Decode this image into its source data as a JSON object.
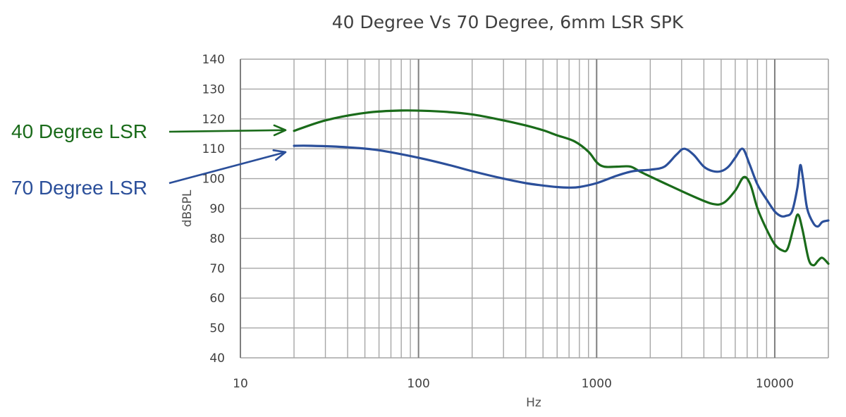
{
  "chart_data": {
    "type": "line",
    "title": "40 Degree Vs 70 Degree, 6mm LSR SPK",
    "xlabel": "Hz",
    "ylabel": "dBSPL",
    "x_scale": "log",
    "xlim": [
      10,
      20000
    ],
    "ylim": [
      40,
      140
    ],
    "x_ticks": [
      "10",
      "100",
      "1000",
      "10000"
    ],
    "y_ticks": [
      "40",
      "50",
      "60",
      "70",
      "80",
      "90",
      "100",
      "110",
      "120",
      "130",
      "140"
    ],
    "grid": true,
    "series": [
      {
        "name": "40 Degree LSR",
        "color": "#1a6b1a",
        "points": [
          [
            20,
            116
          ],
          [
            30,
            119.5
          ],
          [
            50,
            122
          ],
          [
            80,
            122.8
          ],
          [
            130,
            122.5
          ],
          [
            200,
            121.5
          ],
          [
            300,
            119.5
          ],
          [
            400,
            117.8
          ],
          [
            500,
            116.2
          ],
          [
            600,
            114.5
          ],
          [
            750,
            112.5
          ],
          [
            900,
            109
          ],
          [
            1000,
            105.5
          ],
          [
            1100,
            104
          ],
          [
            1300,
            104
          ],
          [
            1550,
            104
          ],
          [
            1800,
            102
          ],
          [
            2500,
            98
          ],
          [
            3500,
            94
          ],
          [
            4500,
            91.5
          ],
          [
            5200,
            92
          ],
          [
            6000,
            96
          ],
          [
            6700,
            100.5
          ],
          [
            7300,
            98
          ],
          [
            8000,
            90
          ],
          [
            9000,
            83
          ],
          [
            10000,
            78
          ],
          [
            11000,
            76
          ],
          [
            11800,
            76.5
          ],
          [
            12800,
            84
          ],
          [
            13500,
            88
          ],
          [
            14300,
            83
          ],
          [
            15500,
            73
          ],
          [
            16500,
            71
          ],
          [
            17500,
            72.5
          ],
          [
            18500,
            73.5
          ],
          [
            20000,
            71.5
          ]
        ]
      },
      {
        "name": "70 Degree LSR",
        "color": "#2b4f9a",
        "points": [
          [
            20,
            111
          ],
          [
            25,
            111
          ],
          [
            40,
            110.5
          ],
          [
            60,
            109.5
          ],
          [
            100,
            107
          ],
          [
            150,
            104.5
          ],
          [
            200,
            102.5
          ],
          [
            300,
            100
          ],
          [
            400,
            98.5
          ],
          [
            500,
            97.7
          ],
          [
            600,
            97.2
          ],
          [
            700,
            97
          ],
          [
            800,
            97.2
          ],
          [
            1000,
            98.5
          ],
          [
            1300,
            101
          ],
          [
            1600,
            102.5
          ],
          [
            2000,
            103
          ],
          [
            2400,
            104
          ],
          [
            2800,
            108
          ],
          [
            3100,
            110
          ],
          [
            3500,
            108
          ],
          [
            4000,
            104
          ],
          [
            4500,
            102.5
          ],
          [
            5000,
            102.5
          ],
          [
            5500,
            104
          ],
          [
            6000,
            107
          ],
          [
            6600,
            110
          ],
          [
            7200,
            105
          ],
          [
            8000,
            98
          ],
          [
            9000,
            93
          ],
          [
            10000,
            89
          ],
          [
            10800,
            87.5
          ],
          [
            11500,
            87.5
          ],
          [
            12500,
            89
          ],
          [
            13400,
            97
          ],
          [
            13900,
            104.5
          ],
          [
            14400,
            100
          ],
          [
            15200,
            90
          ],
          [
            16500,
            85
          ],
          [
            17500,
            84
          ],
          [
            18500,
            85.5
          ],
          [
            20000,
            86
          ]
        ]
      }
    ],
    "annotations": [
      {
        "text": "40 Degree LSR",
        "color": "#1a6b1a",
        "points_to": [
          20,
          116
        ]
      },
      {
        "text": "70 Degree LSR",
        "color": "#2b4f9a",
        "points_to": [
          20,
          111
        ]
      }
    ]
  }
}
